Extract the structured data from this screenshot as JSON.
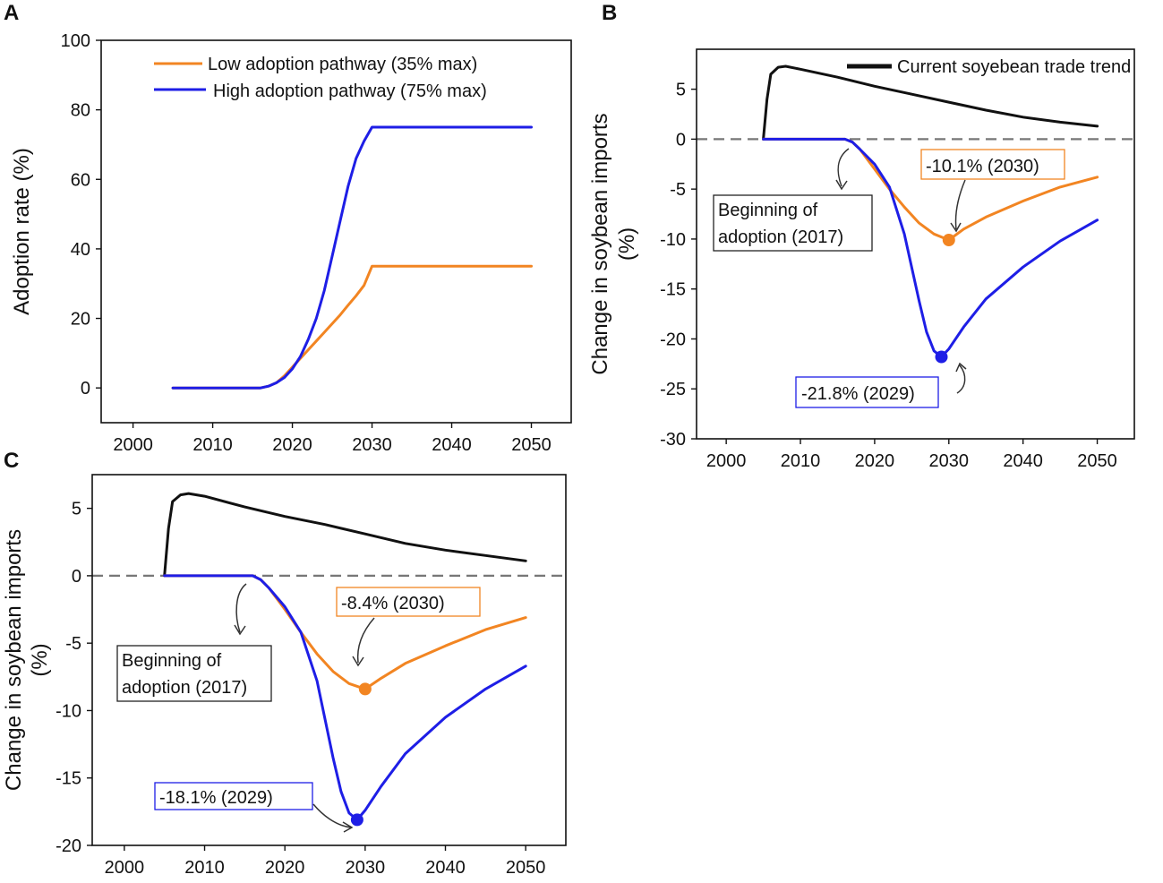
{
  "chart_data": [
    {
      "panel": "A",
      "type": "line",
      "xlabel": "",
      "ylabel": "Adoption rate (%)",
      "xlim": [
        1996,
        2055
      ],
      "ylim": [
        -10,
        100
      ],
      "xticks": [
        2000,
        2010,
        2020,
        2030,
        2040,
        2050
      ],
      "yticks": [
        0,
        20,
        40,
        60,
        80,
        100
      ],
      "legend": "top-center",
      "series": [
        {
          "name": "Low adoption pathway (35% max)",
          "color": "#f28522",
          "x": [
            2005,
            2016,
            2017,
            2018,
            2019,
            2020,
            2021,
            2022,
            2023,
            2024,
            2025,
            2026,
            2027,
            2028,
            2029,
            2030,
            2040,
            2050
          ],
          "y": [
            0,
            0,
            0.5,
            1.5,
            3.5,
            6,
            8.5,
            11,
            13.5,
            16,
            18.5,
            21,
            23.8,
            26.5,
            29.5,
            35,
            35,
            35
          ]
        },
        {
          "name": "High adoption pathway (75% max)",
          "color": "#1e1ee6",
          "x": [
            2005,
            2016,
            2017,
            2018,
            2019,
            2020,
            2021,
            2022,
            2023,
            2024,
            2025,
            2026,
            2027,
            2028,
            2029,
            2030,
            2040,
            2050
          ],
          "y": [
            0,
            0,
            0.5,
            1.5,
            3,
            5.5,
            9,
            14,
            20,
            28,
            38,
            48,
            58,
            66,
            71,
            75,
            75,
            75
          ]
        }
      ]
    },
    {
      "panel": "B",
      "type": "line",
      "xlabel": "",
      "ylabel": "Change in soybean imports (%)",
      "xlim": [
        1996,
        2055
      ],
      "ylim": [
        -30,
        9
      ],
      "xticks": [
        2000,
        2010,
        2020,
        2030,
        2040,
        2050
      ],
      "yticks": [
        5,
        0,
        -5,
        -10,
        -15,
        -20,
        -25,
        -30
      ],
      "legend": "top-right",
      "reference_line": 0,
      "series": [
        {
          "name": "Current soyebean trade trend",
          "color": "#111111",
          "x": [
            2005,
            2005.5,
            2006,
            2007,
            2008,
            2010,
            2015,
            2020,
            2025,
            2030,
            2035,
            2040,
            2045,
            2050
          ],
          "y": [
            0,
            4,
            6.5,
            7.2,
            7.3,
            7.0,
            6.2,
            5.3,
            4.5,
            3.7,
            2.9,
            2.2,
            1.7,
            1.3
          ]
        },
        {
          "name": "Low adoption pathway",
          "color": "#f28522",
          "x": [
            2005,
            2016,
            2017,
            2018,
            2020,
            2022,
            2024,
            2026,
            2028,
            2030,
            2032,
            2035,
            2040,
            2045,
            2050
          ],
          "y": [
            0,
            0,
            -0.3,
            -1,
            -3,
            -5,
            -6.8,
            -8.4,
            -9.5,
            -10.1,
            -9,
            -7.8,
            -6.2,
            -4.8,
            -3.8
          ]
        },
        {
          "name": "High adoption pathway",
          "color": "#1e1ee6",
          "x": [
            2005,
            2016,
            2017,
            2018,
            2020,
            2022,
            2024,
            2026,
            2027,
            2028,
            2029,
            2030,
            2032,
            2035,
            2040,
            2045,
            2050
          ],
          "y": [
            0,
            0,
            -0.3,
            -1,
            -2.5,
            -4.8,
            -9.5,
            -16.2,
            -19.3,
            -21.2,
            -21.8,
            -21,
            -18.8,
            -16,
            -12.8,
            -10.2,
            -8.1
          ]
        }
      ],
      "annotations": [
        {
          "text": "-10.1% (2030)",
          "color": "#f28522",
          "x": 2030,
          "y": -10.1
        },
        {
          "text": "-21.8% (2029)",
          "color": "#1e1ee6",
          "x": 2029,
          "y": -21.8
        },
        {
          "text": "Beginning of",
          "text2": "adoption (2017)",
          "color": "#111111",
          "x": 2017,
          "y": 0
        }
      ]
    },
    {
      "panel": "C",
      "type": "line",
      "xlabel": "",
      "ylabel": "Change in soybean imports (%)",
      "xlim": [
        1996,
        2055
      ],
      "ylim": [
        -20,
        7.5
      ],
      "xticks": [
        2000,
        2010,
        2020,
        2030,
        2040,
        2050
      ],
      "yticks": [
        5,
        0,
        -5,
        -10,
        -15,
        -20
      ],
      "reference_line": 0,
      "series": [
        {
          "name": "Current soyebean trade trend",
          "color": "#111111",
          "x": [
            2005,
            2005.5,
            2006,
            2007,
            2008,
            2010,
            2015,
            2020,
            2025,
            2030,
            2035,
            2040,
            2045,
            2050
          ],
          "y": [
            0,
            3.5,
            5.5,
            6.0,
            6.1,
            5.9,
            5.1,
            4.4,
            3.8,
            3.1,
            2.4,
            1.9,
            1.5,
            1.1
          ]
        },
        {
          "name": "Low adoption pathway",
          "color": "#f28522",
          "x": [
            2005,
            2016,
            2017,
            2018,
            2020,
            2022,
            2024,
            2026,
            2028,
            2030,
            2032,
            2035,
            2040,
            2045,
            2050
          ],
          "y": [
            0,
            0,
            -0.3,
            -0.9,
            -2.5,
            -4.2,
            -5.8,
            -7.1,
            -8,
            -8.4,
            -7.6,
            -6.5,
            -5.2,
            -4,
            -3.1
          ]
        },
        {
          "name": "High adoption pathway",
          "color": "#1e1ee6",
          "x": [
            2005,
            2016,
            2017,
            2018,
            2020,
            2022,
            2024,
            2026,
            2027,
            2028,
            2029,
            2030,
            2032,
            2035,
            2040,
            2045,
            2050
          ],
          "y": [
            0,
            0,
            -0.3,
            -0.9,
            -2.3,
            -4.2,
            -7.8,
            -13.5,
            -16,
            -17.6,
            -18.1,
            -17.4,
            -15.6,
            -13.2,
            -10.5,
            -8.4,
            -6.7
          ]
        }
      ],
      "annotations": [
        {
          "text": "-8.4% (2030)",
          "color": "#f28522",
          "x": 2030,
          "y": -8.4
        },
        {
          "text": "-18.1% (2029)",
          "color": "#1e1ee6",
          "x": 2029,
          "y": -18.1
        },
        {
          "text": "Beginning of",
          "text2": "adoption (2017)",
          "color": "#111111",
          "x": 2017,
          "y": 0
        }
      ]
    }
  ]
}
